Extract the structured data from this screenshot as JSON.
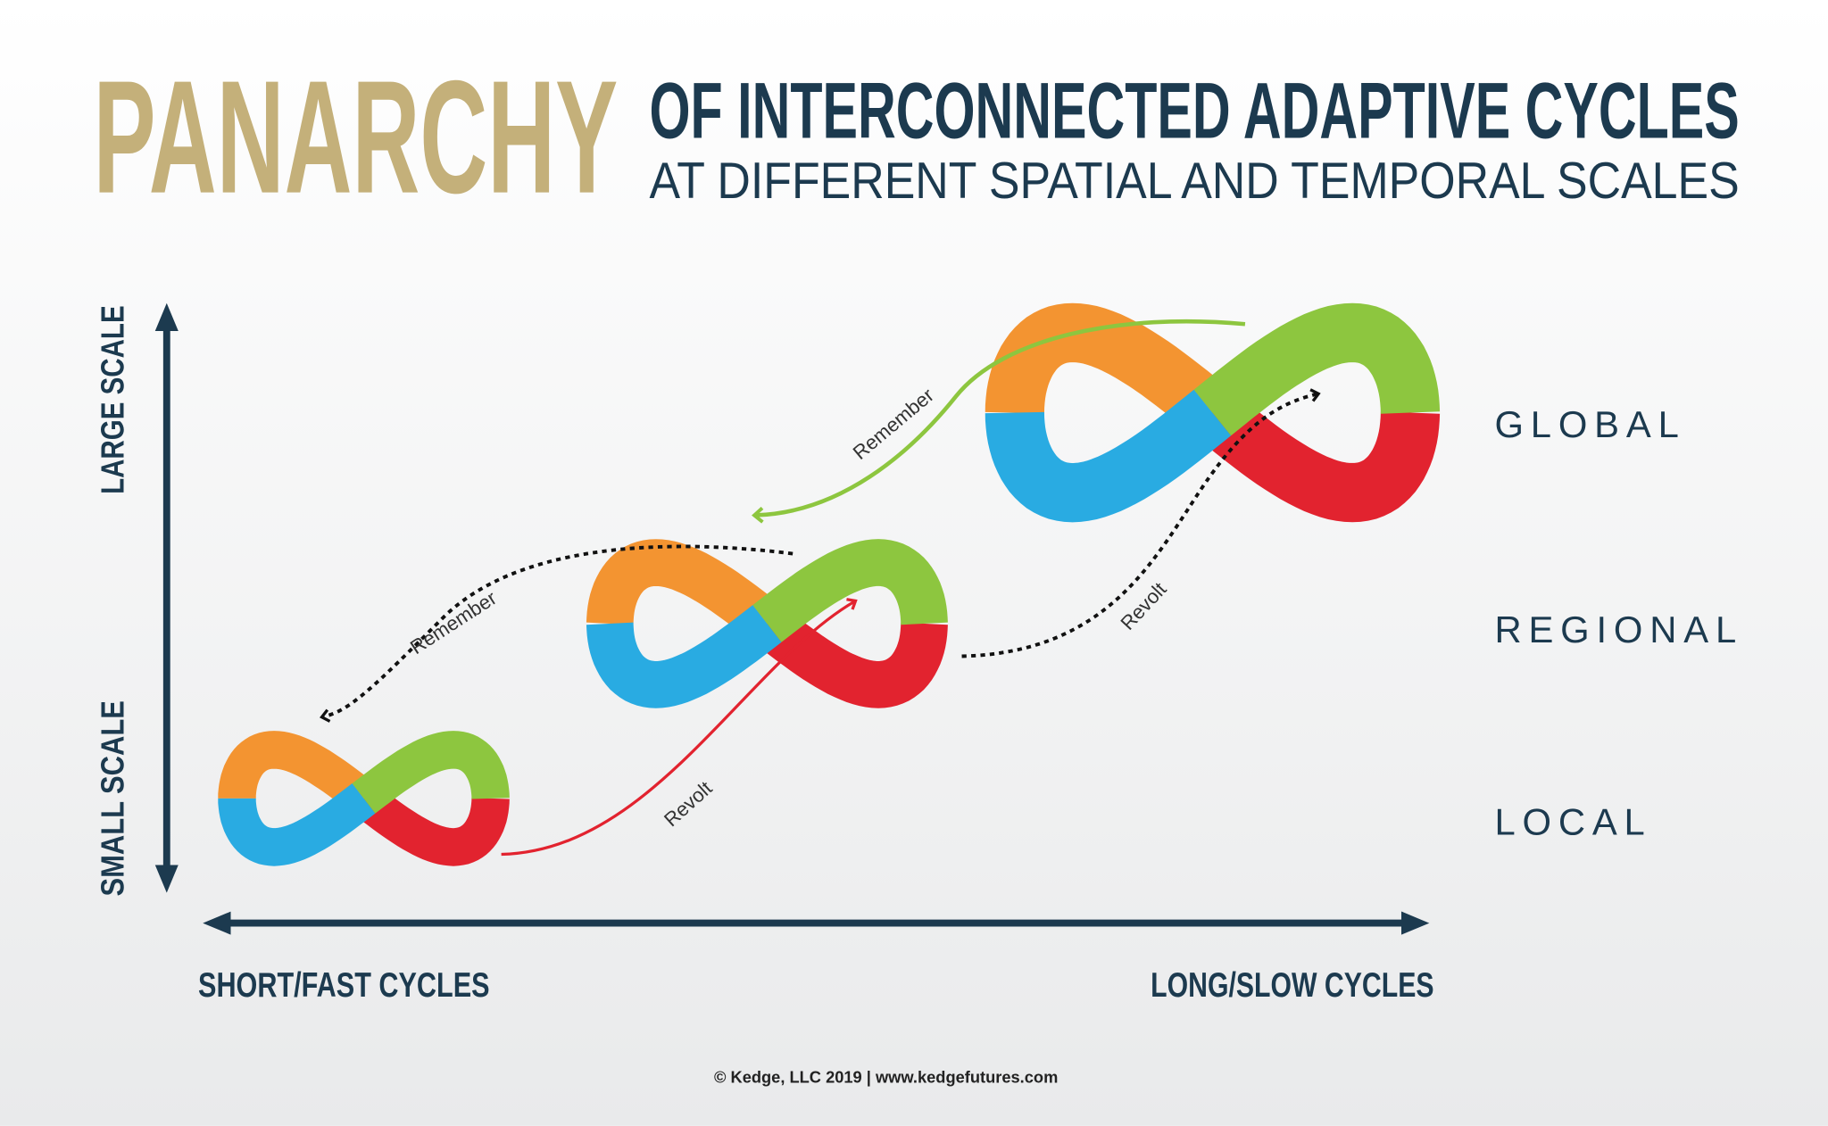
{
  "header": {
    "title": "PANARCHY",
    "subtitle_line1": "OF INTERCONNECTED ADAPTIVE CYCLES",
    "subtitle_line2": "AT DIFFERENT SPATIAL AND TEMPORAL SCALES"
  },
  "axes": {
    "y_top": "LARGE SCALE",
    "y_bottom": "SMALL SCALE",
    "x_left": "SHORT/FAST CYCLES",
    "x_right": "LONG/SLOW CYCLES"
  },
  "levels": [
    "GLOBAL",
    "REGIONAL",
    "LOCAL"
  ],
  "arrows": [
    "Revolt",
    "Revolt",
    "Remember",
    "Remember"
  ],
  "footer": "© Kedge, LLC 2019 | www.kedgefutures.com"
}
